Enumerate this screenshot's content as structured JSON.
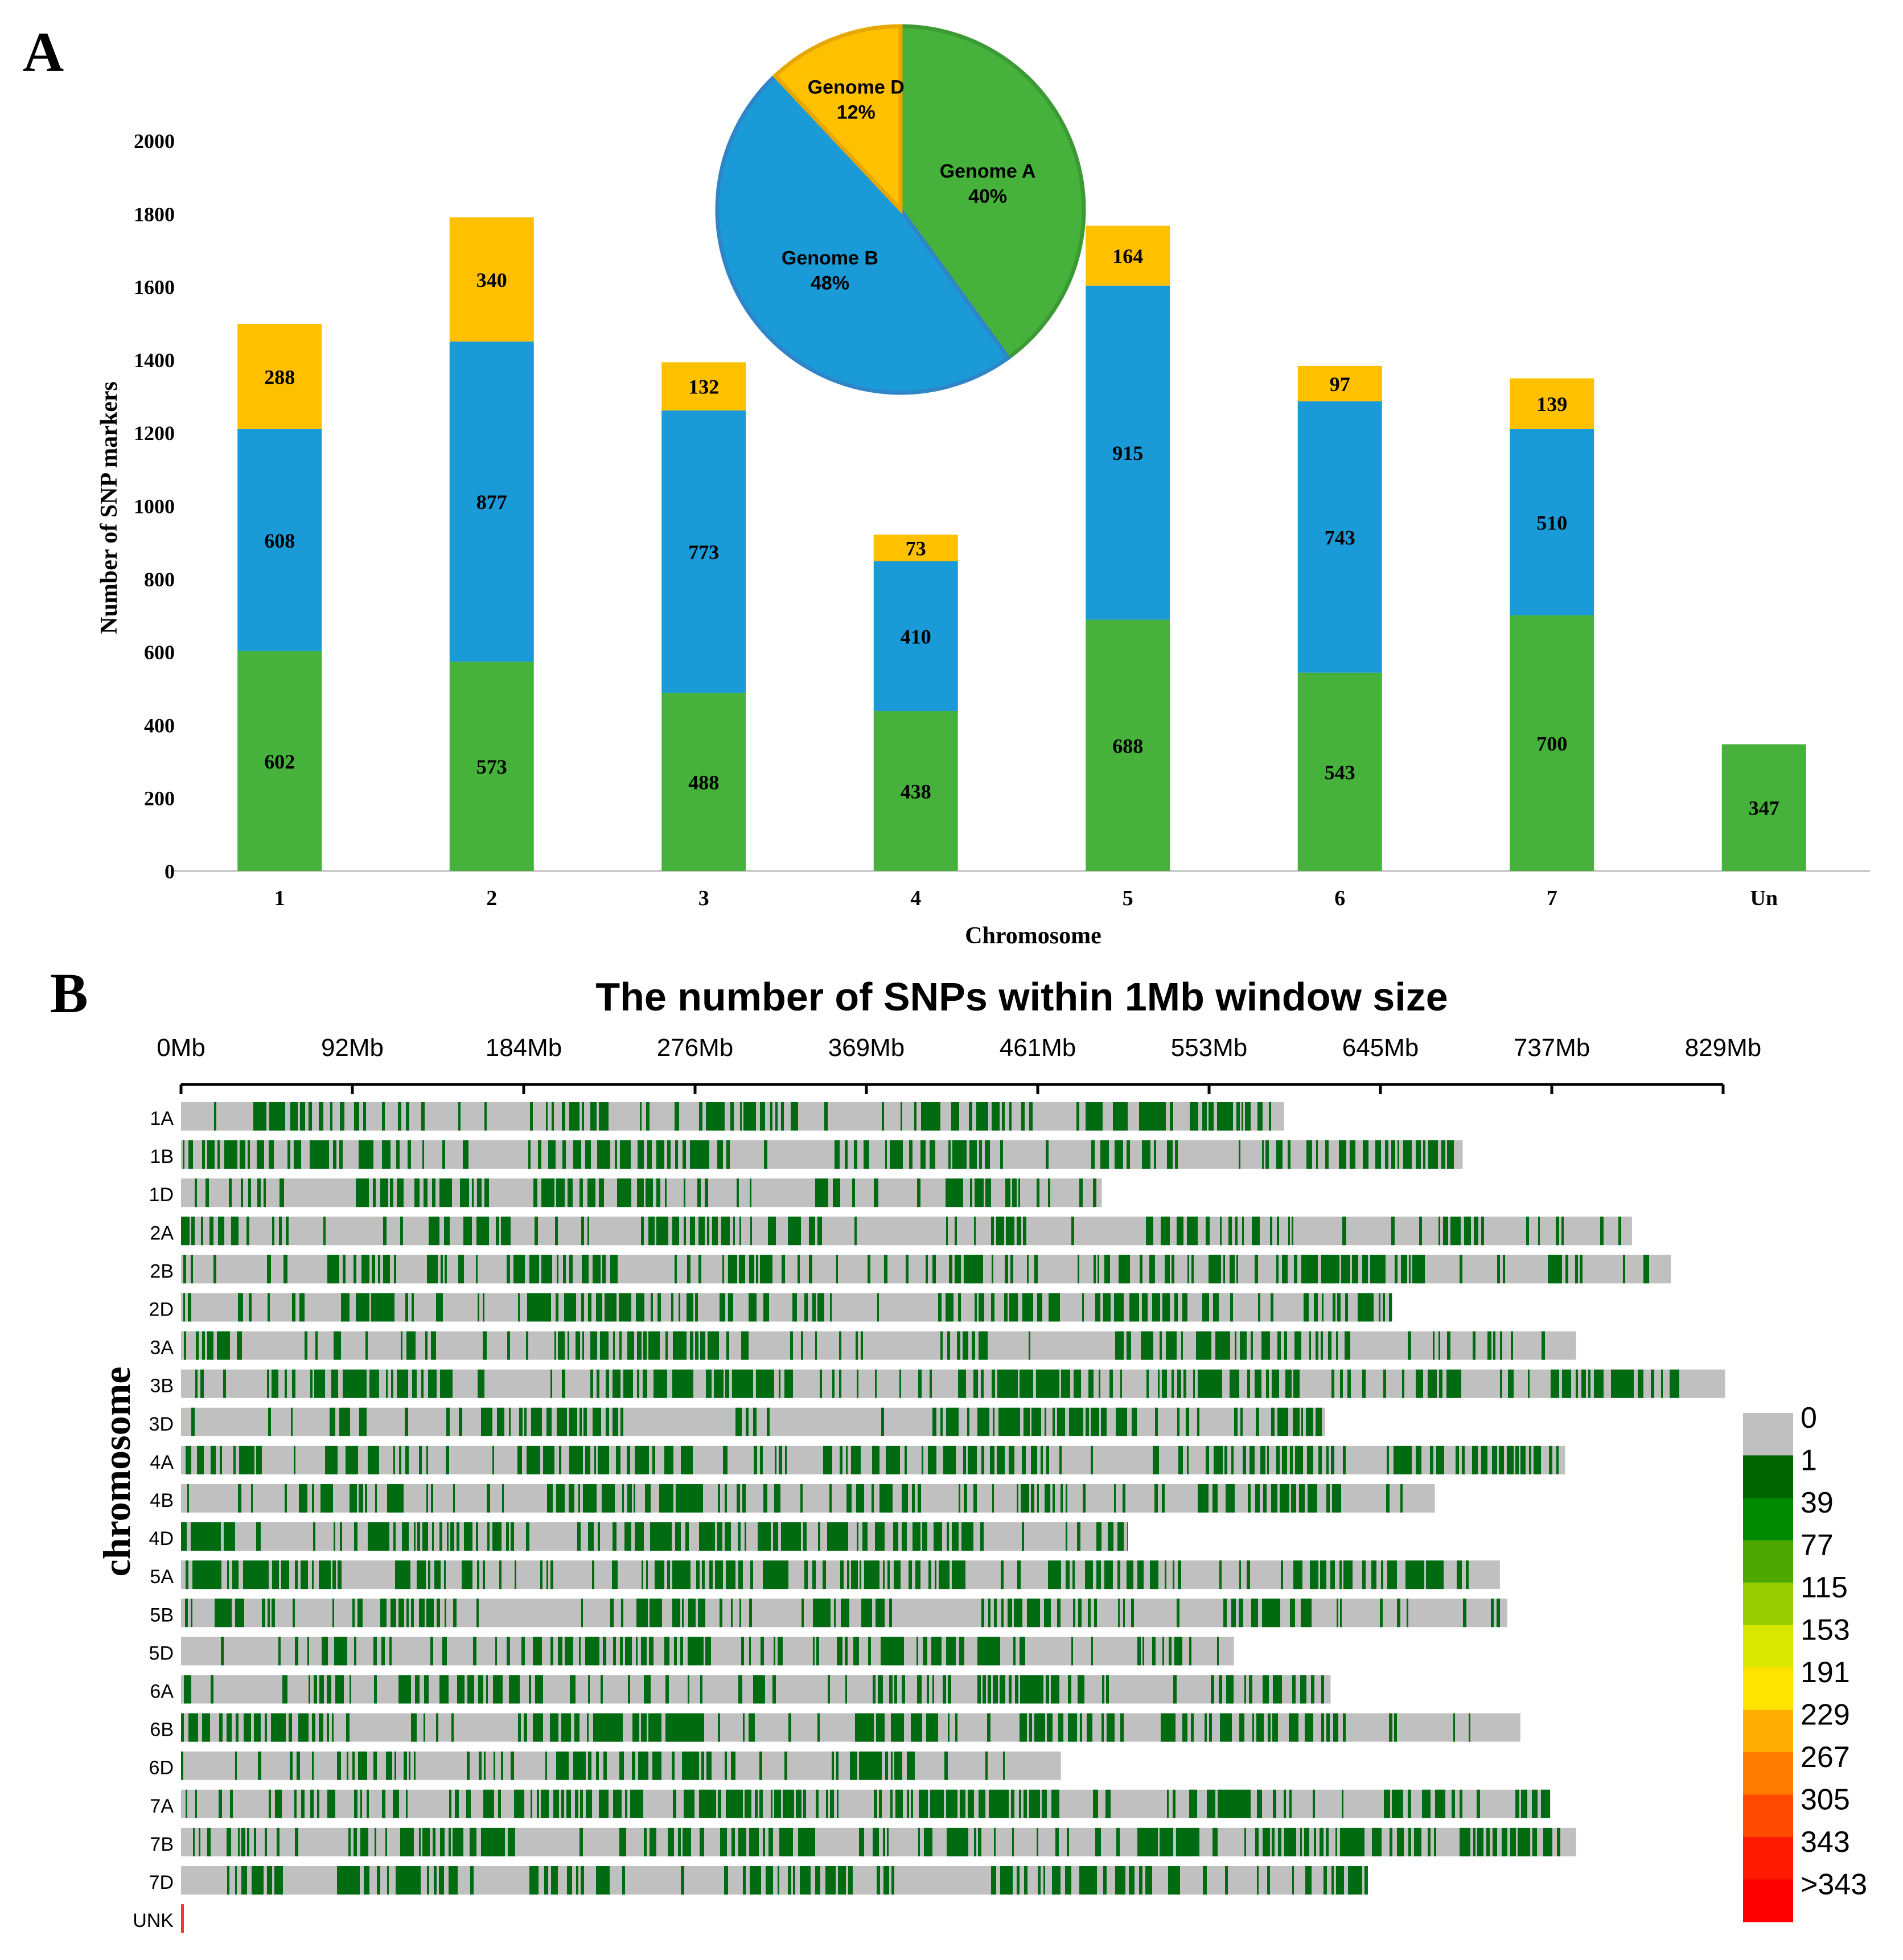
{
  "panelA": {
    "label": "A",
    "chart_data": {
      "type": "bar",
      "stacked": true,
      "title": "",
      "xlabel": "Chromosome",
      "ylabel": "Number of SNP markers",
      "ylim": [
        0,
        2000
      ],
      "yticks": [
        0,
        200,
        400,
        600,
        800,
        1000,
        1200,
        1400,
        1600,
        1800,
        2000
      ],
      "categories": [
        "1",
        "2",
        "3",
        "4",
        "5",
        "6",
        "7",
        "Un"
      ],
      "series": [
        {
          "name": "Genome A",
          "color": "#46B23C",
          "values": [
            602,
            573,
            488,
            438,
            688,
            543,
            700,
            347
          ]
        },
        {
          "name": "Genome B",
          "color": "#1A9BD7",
          "values": [
            608,
            877,
            773,
            410,
            915,
            743,
            510,
            null
          ]
        },
        {
          "name": "Genome D",
          "color": "#FFC000",
          "values": [
            288,
            340,
            132,
            73,
            164,
            97,
            139,
            null
          ]
        }
      ]
    },
    "pie": {
      "type": "pie",
      "slices": [
        {
          "label": "Genome A",
          "pct": "40%",
          "value": 40,
          "color": "#46B23C",
          "stroke": "#3C9A34"
        },
        {
          "label": "Genome B",
          "pct": "48%",
          "value": 48,
          "color": "#1A9BD7",
          "stroke": "#2E86C8"
        },
        {
          "label": "Genome D",
          "pct": "12%",
          "value": 12,
          "color": "#FFC000",
          "stroke": "#E6A800"
        }
      ]
    }
  },
  "panelB": {
    "label": "B",
    "chart_data": {
      "type": "heatmap",
      "title": "The number of SNPs within 1Mb window size",
      "ylabel": "chromosome",
      "axis_ticks": [
        "0Mb",
        "92Mb",
        "184Mb",
        "276Mb",
        "369Mb",
        "461Mb",
        "553Mb",
        "645Mb",
        "737Mb",
        "829Mb"
      ],
      "axis_max_mb": 829,
      "chromosomes": [
        {
          "name": "1A",
          "length_mb": 593
        },
        {
          "name": "1B",
          "length_mb": 689
        },
        {
          "name": "1D",
          "length_mb": 495
        },
        {
          "name": "2A",
          "length_mb": 780
        },
        {
          "name": "2B",
          "length_mb": 801
        },
        {
          "name": "2D",
          "length_mb": 651
        },
        {
          "name": "3A",
          "length_mb": 750
        },
        {
          "name": "3B",
          "length_mb": 830
        },
        {
          "name": "3D",
          "length_mb": 615
        },
        {
          "name": "4A",
          "length_mb": 744
        },
        {
          "name": "4B",
          "length_mb": 674
        },
        {
          "name": "4D",
          "length_mb": 509
        },
        {
          "name": "5A",
          "length_mb": 709
        },
        {
          "name": "5B",
          "length_mb": 713
        },
        {
          "name": "5D",
          "length_mb": 566
        },
        {
          "name": "6A",
          "length_mb": 618
        },
        {
          "name": "6B",
          "length_mb": 720
        },
        {
          "name": "6D",
          "length_mb": 473
        },
        {
          "name": "7A",
          "length_mb": 736
        },
        {
          "name": "7B",
          "length_mb": 750
        },
        {
          "name": "7D",
          "length_mb": 638
        },
        {
          "name": "UNK",
          "length_mb": 0
        }
      ],
      "legend": {
        "labels": [
          "0",
          "1",
          "39",
          "77",
          "115",
          "153",
          "191",
          "229",
          "267",
          "305",
          "343",
          ">343"
        ],
        "colors": [
          "#C0C0C0",
          "#006400",
          "#008A00",
          "#4CA800",
          "#99CC00",
          "#D8E800",
          "#FFE400",
          "#FFAE00",
          "#FF7A00",
          "#FF4A00",
          "#FF1A00",
          "#FF0000"
        ]
      },
      "no_snp_color": "#C0C0C0",
      "snp_color": "#006B10",
      "unk_color": "#FF3030"
    }
  }
}
